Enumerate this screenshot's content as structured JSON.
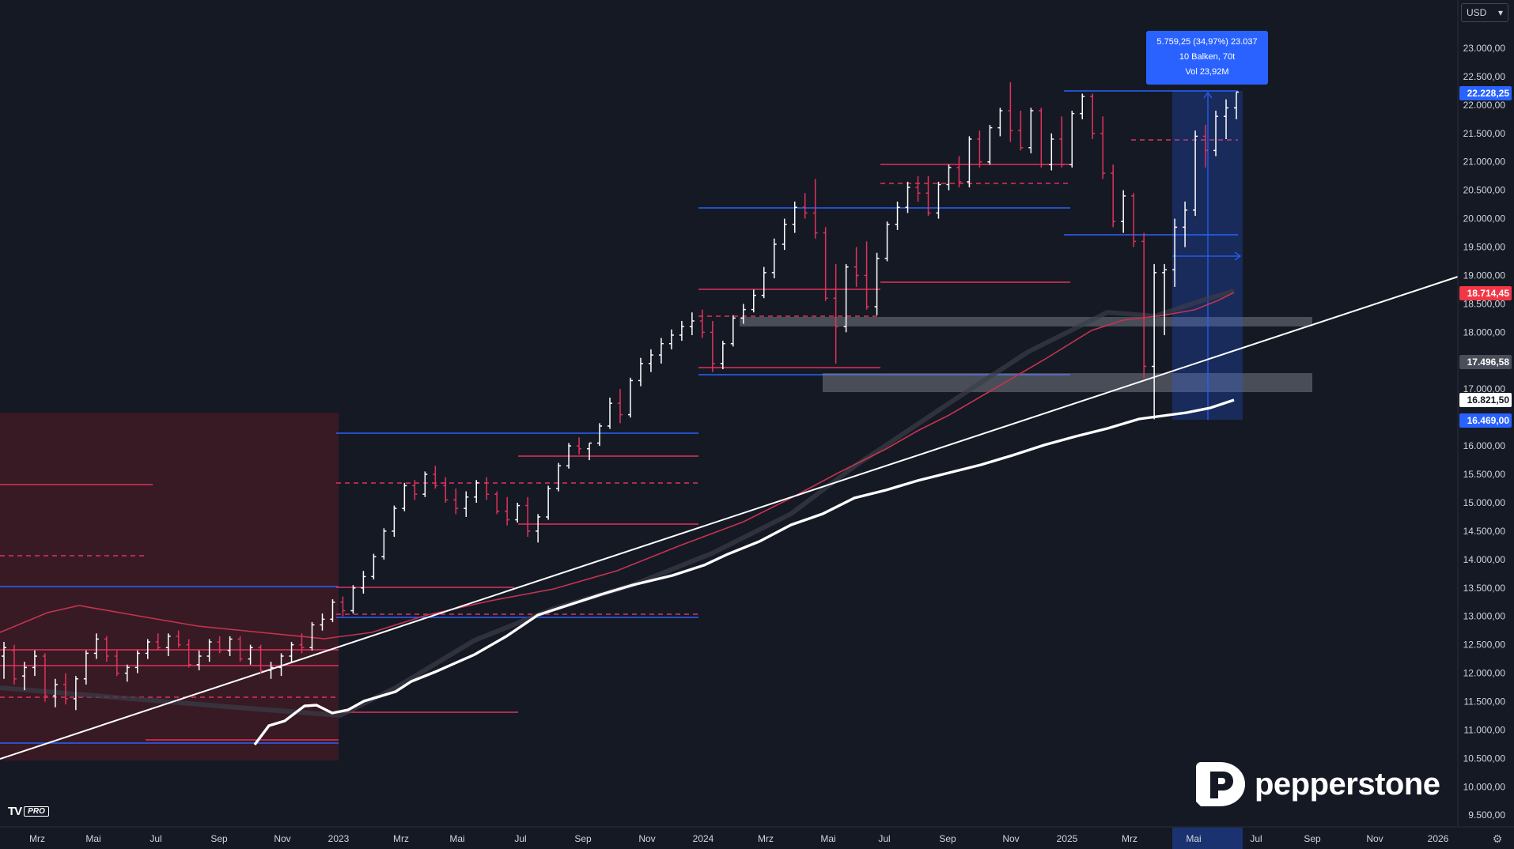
{
  "app": {
    "currency": "USD",
    "settings_icon": "gear-icon"
  },
  "watermark": {
    "brand": "pepperstone",
    "tv_mark": "TV",
    "tv_badge": "PRO"
  },
  "measure": {
    "line1": "5.759,25 (34,97%) 23.037",
    "line2": "10 Balken, 70t",
    "line3": "Vol 23,92M"
  },
  "price_labels": {
    "last": "22.228,25",
    "ma_red": "18.714,45",
    "trend": "17.496,58",
    "ma_white": "16.821,50",
    "range_low": "16.469,00"
  },
  "colors": {
    "background": "#151924",
    "bull": "#ffffff",
    "bear": "#e0335b",
    "blue": "#2962ff",
    "red_zone": "#3d1b25",
    "pill_blue": "#2962ff",
    "pill_red": "#f23645"
  },
  "chart_data": {
    "type": "ohlc",
    "y_axis_ticks": [
      "23.000,00",
      "22.500,00",
      "22.000,00",
      "21.500,00",
      "21.000,00",
      "20.500,00",
      "20.000,00",
      "19.500,00",
      "19.000,00",
      "18.500,00",
      "18.000,00",
      "17.500,00",
      "17.000,00",
      "16.500,00",
      "16.000,00",
      "15.500,00",
      "15.000,00",
      "14.500,00",
      "14.000,00",
      "13.500,00",
      "13.000,00",
      "12.500,00",
      "12.000,00",
      "11.500,00",
      "11.000,00",
      "10.500,00",
      "10.000,00",
      "9.500,00"
    ],
    "x_axis_ticks": [
      "Mrz",
      "Mai",
      "Jul",
      "Sep",
      "Nov",
      "2023",
      "Mrz",
      "Mai",
      "Jul",
      "Sep",
      "Nov",
      "2024",
      "Mrz",
      "Mai",
      "Jul",
      "Sep",
      "Nov",
      "2025",
      "Mrz",
      "Mai",
      "Jul",
      "Sep",
      "Nov",
      "2026"
    ],
    "ylim": [
      9500,
      23000
    ],
    "xlim": [
      "2022-01",
      "2026-01"
    ],
    "ohlc_weekly": [
      [
        12300,
        12550,
        11900,
        12450
      ],
      [
        12400,
        12500,
        11800,
        11900
      ],
      [
        11950,
        12200,
        11700,
        12100
      ],
      [
        12100,
        12400,
        11950,
        12300
      ],
      [
        12300,
        12350,
        11500,
        11600
      ],
      [
        11600,
        11900,
        11400,
        11800
      ],
      [
        11800,
        12000,
        11450,
        11550
      ],
      [
        11550,
        11950,
        11350,
        11900
      ],
      [
        11900,
        12400,
        11800,
        12350
      ],
      [
        12350,
        12700,
        12250,
        12600
      ],
      [
        12600,
        12650,
        12200,
        12300
      ],
      [
        12300,
        12400,
        11950,
        12000
      ],
      [
        12000,
        12150,
        11850,
        12100
      ],
      [
        12100,
        12400,
        12000,
        12350
      ],
      [
        12350,
        12600,
        12250,
        12550
      ],
      [
        12550,
        12700,
        12400,
        12450
      ],
      [
        12450,
        12700,
        12300,
        12650
      ],
      [
        12650,
        12750,
        12450,
        12500
      ],
      [
        12500,
        12600,
        12100,
        12150
      ],
      [
        12150,
        12400,
        12050,
        12300
      ],
      [
        12300,
        12600,
        12200,
        12550
      ],
      [
        12550,
        12650,
        12350,
        12400
      ],
      [
        12400,
        12650,
        12300,
        12600
      ],
      [
        12600,
        12650,
        12200,
        12250
      ],
      [
        12250,
        12500,
        12150,
        12450
      ],
      [
        12450,
        12500,
        12000,
        12050
      ],
      [
        12050,
        12200,
        11900,
        12100
      ],
      [
        12100,
        12350,
        11950,
        12300
      ],
      [
        12300,
        12550,
        12200,
        12500
      ],
      [
        12500,
        12700,
        12350,
        12450
      ],
      [
        12450,
        12900,
        12400,
        12850
      ],
      [
        12850,
        13050,
        12750,
        12950
      ],
      [
        12950,
        13300,
        12900,
        13250
      ],
      [
        13250,
        13350,
        13000,
        13100
      ],
      [
        13100,
        13550,
        13050,
        13500
      ],
      [
        13500,
        13800,
        13400,
        13700
      ],
      [
        13700,
        14100,
        13650,
        14050
      ],
      [
        14050,
        14550,
        14000,
        14500
      ],
      [
        14500,
        14950,
        14400,
        14900
      ],
      [
        14900,
        15350,
        14850,
        15300
      ],
      [
        15300,
        15400,
        15050,
        15150
      ],
      [
        15150,
        15550,
        15100,
        15500
      ],
      [
        15500,
        15650,
        15250,
        15300
      ],
      [
        15300,
        15450,
        15000,
        15050
      ],
      [
        15050,
        15250,
        14800,
        14900
      ],
      [
        14900,
        15200,
        14750,
        15100
      ],
      [
        15100,
        15400,
        15000,
        15350
      ],
      [
        15350,
        15450,
        15050,
        15150
      ],
      [
        15150,
        15200,
        14800,
        14850
      ],
      [
        14850,
        15100,
        14600,
        14700
      ],
      [
        14700,
        15000,
        14650,
        14950
      ],
      [
        14950,
        15100,
        14400,
        14500
      ],
      [
        14500,
        14800,
        14300,
        14750
      ],
      [
        14750,
        15300,
        14700,
        15250
      ],
      [
        15250,
        15700,
        15200,
        15650
      ],
      [
        15650,
        16050,
        15600,
        16000
      ],
      [
        16000,
        16150,
        15850,
        15950
      ],
      [
        15950,
        16050,
        15750,
        16050
      ],
      [
        16050,
        16400,
        16000,
        16350
      ],
      [
        16350,
        16850,
        16300,
        16750
      ],
      [
        16750,
        17000,
        16400,
        16550
      ],
      [
        16550,
        17200,
        16500,
        17150
      ],
      [
        17150,
        17550,
        17050,
        17450
      ],
      [
        17450,
        17700,
        17300,
        17600
      ],
      [
        17600,
        17900,
        17450,
        17800
      ],
      [
        17800,
        18050,
        17700,
        17950
      ],
      [
        17950,
        18200,
        17850,
        18100
      ],
      [
        18100,
        18350,
        17950,
        18200
      ],
      [
        18200,
        18400,
        17900,
        18000
      ],
      [
        18000,
        18200,
        17300,
        17450
      ],
      [
        17450,
        17850,
        17350,
        17800
      ],
      [
        17800,
        18300,
        17750,
        18250
      ],
      [
        18250,
        18500,
        18150,
        18400
      ],
      [
        18400,
        18750,
        18350,
        18650
      ],
      [
        18650,
        19150,
        18600,
        19050
      ],
      [
        19050,
        19650,
        18950,
        19550
      ],
      [
        19550,
        20000,
        19450,
        19900
      ],
      [
        19900,
        20300,
        19750,
        20200
      ],
      [
        20200,
        20450,
        20000,
        20100
      ],
      [
        20100,
        20700,
        19650,
        19750
      ],
      [
        19750,
        19850,
        18550,
        18600
      ],
      [
        18600,
        19200,
        17450,
        18100
      ],
      [
        18100,
        19200,
        18000,
        19150
      ],
      [
        19150,
        19500,
        18800,
        19000
      ],
      [
        19000,
        19600,
        18400,
        18450
      ],
      [
        18450,
        19400,
        18300,
        19300
      ],
      [
        19300,
        19950,
        19250,
        19900
      ],
      [
        19900,
        20300,
        19800,
        20200
      ],
      [
        20200,
        20650,
        20100,
        20550
      ],
      [
        20550,
        20750,
        20300,
        20450
      ],
      [
        20450,
        20750,
        20050,
        20100
      ],
      [
        20100,
        20650,
        20000,
        20600
      ],
      [
        20600,
        20950,
        20500,
        20900
      ],
      [
        20900,
        21100,
        20550,
        20650
      ],
      [
        20650,
        21450,
        20550,
        21400
      ],
      [
        21400,
        21550,
        20900,
        21000
      ],
      [
        21000,
        21650,
        20950,
        21600
      ],
      [
        21600,
        21950,
        21450,
        21900
      ],
      [
        21900,
        22400,
        21350,
        21550
      ],
      [
        21550,
        21900,
        21200,
        21250
      ],
      [
        21250,
        21950,
        21150,
        21900
      ],
      [
        21900,
        21950,
        20900,
        20950
      ],
      [
        20950,
        21500,
        20850,
        21400
      ],
      [
        21400,
        21800,
        20900,
        20950
      ],
      [
        20950,
        21900,
        20900,
        21850
      ],
      [
        21850,
        22200,
        21750,
        22150
      ],
      [
        22150,
        22200,
        21400,
        21500
      ],
      [
        21500,
        21800,
        20700,
        20800
      ],
      [
        20800,
        20950,
        19850,
        19950
      ],
      [
        19950,
        20500,
        19750,
        20400
      ],
      [
        20400,
        20450,
        19500,
        19600
      ],
      [
        19600,
        19750,
        17200,
        17400
      ],
      [
        17400,
        19200,
        16469,
        19050
      ],
      [
        19050,
        19200,
        17950,
        19100
      ],
      [
        19100,
        20000,
        18800,
        19850
      ],
      [
        19850,
        20300,
        19500,
        20150
      ],
      [
        20150,
        21550,
        20050,
        21450
      ],
      [
        21450,
        21650,
        20900,
        21200
      ],
      [
        21200,
        21900,
        21100,
        21800
      ],
      [
        21800,
        22100,
        21400,
        21950
      ],
      [
        21950,
        22228,
        21750,
        22228
      ]
    ],
    "moving_averages": [
      {
        "color": "red",
        "label": "18.714,45"
      },
      {
        "color": "white",
        "label": "16.821,50"
      }
    ],
    "measurement": {
      "change": "5.759,25",
      "percent": "34,97%",
      "bars": "10 Balken",
      "days": "70t",
      "volume": "Vol 23,92M",
      "from": 16469,
      "to": 22228.25
    }
  }
}
